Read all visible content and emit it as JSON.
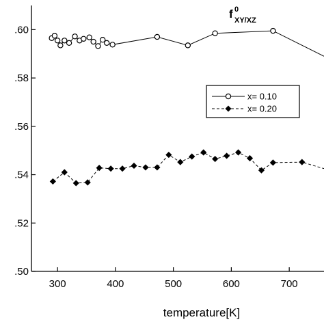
{
  "chart_data": {
    "type": "line",
    "xlabel": "temperature[K]",
    "ylabel": "",
    "xlim": [
      255,
      760
    ],
    "ylim": [
      0.5,
      0.61
    ],
    "x_ticks": [
      300,
      400,
      500,
      600,
      700
    ],
    "x_tick_labels": [
      "300",
      "400",
      "500",
      "600",
      "700"
    ],
    "y_ticks": [
      0.5,
      0.52,
      0.54,
      0.56,
      0.58,
      0.6
    ],
    "y_tick_labels": [
      ".50",
      ".52",
      ".54",
      ".56",
      ".58",
      ".60"
    ],
    "grid": false,
    "legend_position": "upper-right",
    "annotation": {
      "main": "f",
      "sup": "0",
      "sub": "XY/XZ"
    },
    "series": [
      {
        "name": "x= 0.10",
        "marker": "open-circle",
        "line": "solid",
        "x": [
          290,
          295,
          300,
          305,
          312,
          320,
          330,
          338,
          345,
          355,
          362,
          370,
          378,
          385,
          395,
          472,
          525,
          572,
          672,
          760
        ],
        "y": [
          0.5965,
          0.5975,
          0.5955,
          0.5935,
          0.5955,
          0.5945,
          0.5972,
          0.5955,
          0.5962,
          0.5968,
          0.595,
          0.5932,
          0.5958,
          0.5945,
          0.5938,
          0.597,
          0.5935,
          0.5985,
          0.5995,
          0.589
        ],
        "markers_until_index": 18
      },
      {
        "name": "x= 0.20",
        "marker": "filled-diamond",
        "line": "dashed",
        "x": [
          292,
          312,
          332,
          352,
          372,
          392,
          412,
          432,
          452,
          472,
          492,
          512,
          532,
          552,
          572,
          592,
          612,
          632,
          652,
          672,
          722,
          760
        ],
        "y": [
          0.5372,
          0.541,
          0.5365,
          0.5368,
          0.5428,
          0.5425,
          0.5425,
          0.5437,
          0.543,
          0.543,
          0.5482,
          0.5452,
          0.5475,
          0.5492,
          0.5465,
          0.5478,
          0.5492,
          0.5468,
          0.5418,
          0.545,
          0.5452,
          0.5425
        ],
        "markers_until_index": 20
      }
    ]
  }
}
